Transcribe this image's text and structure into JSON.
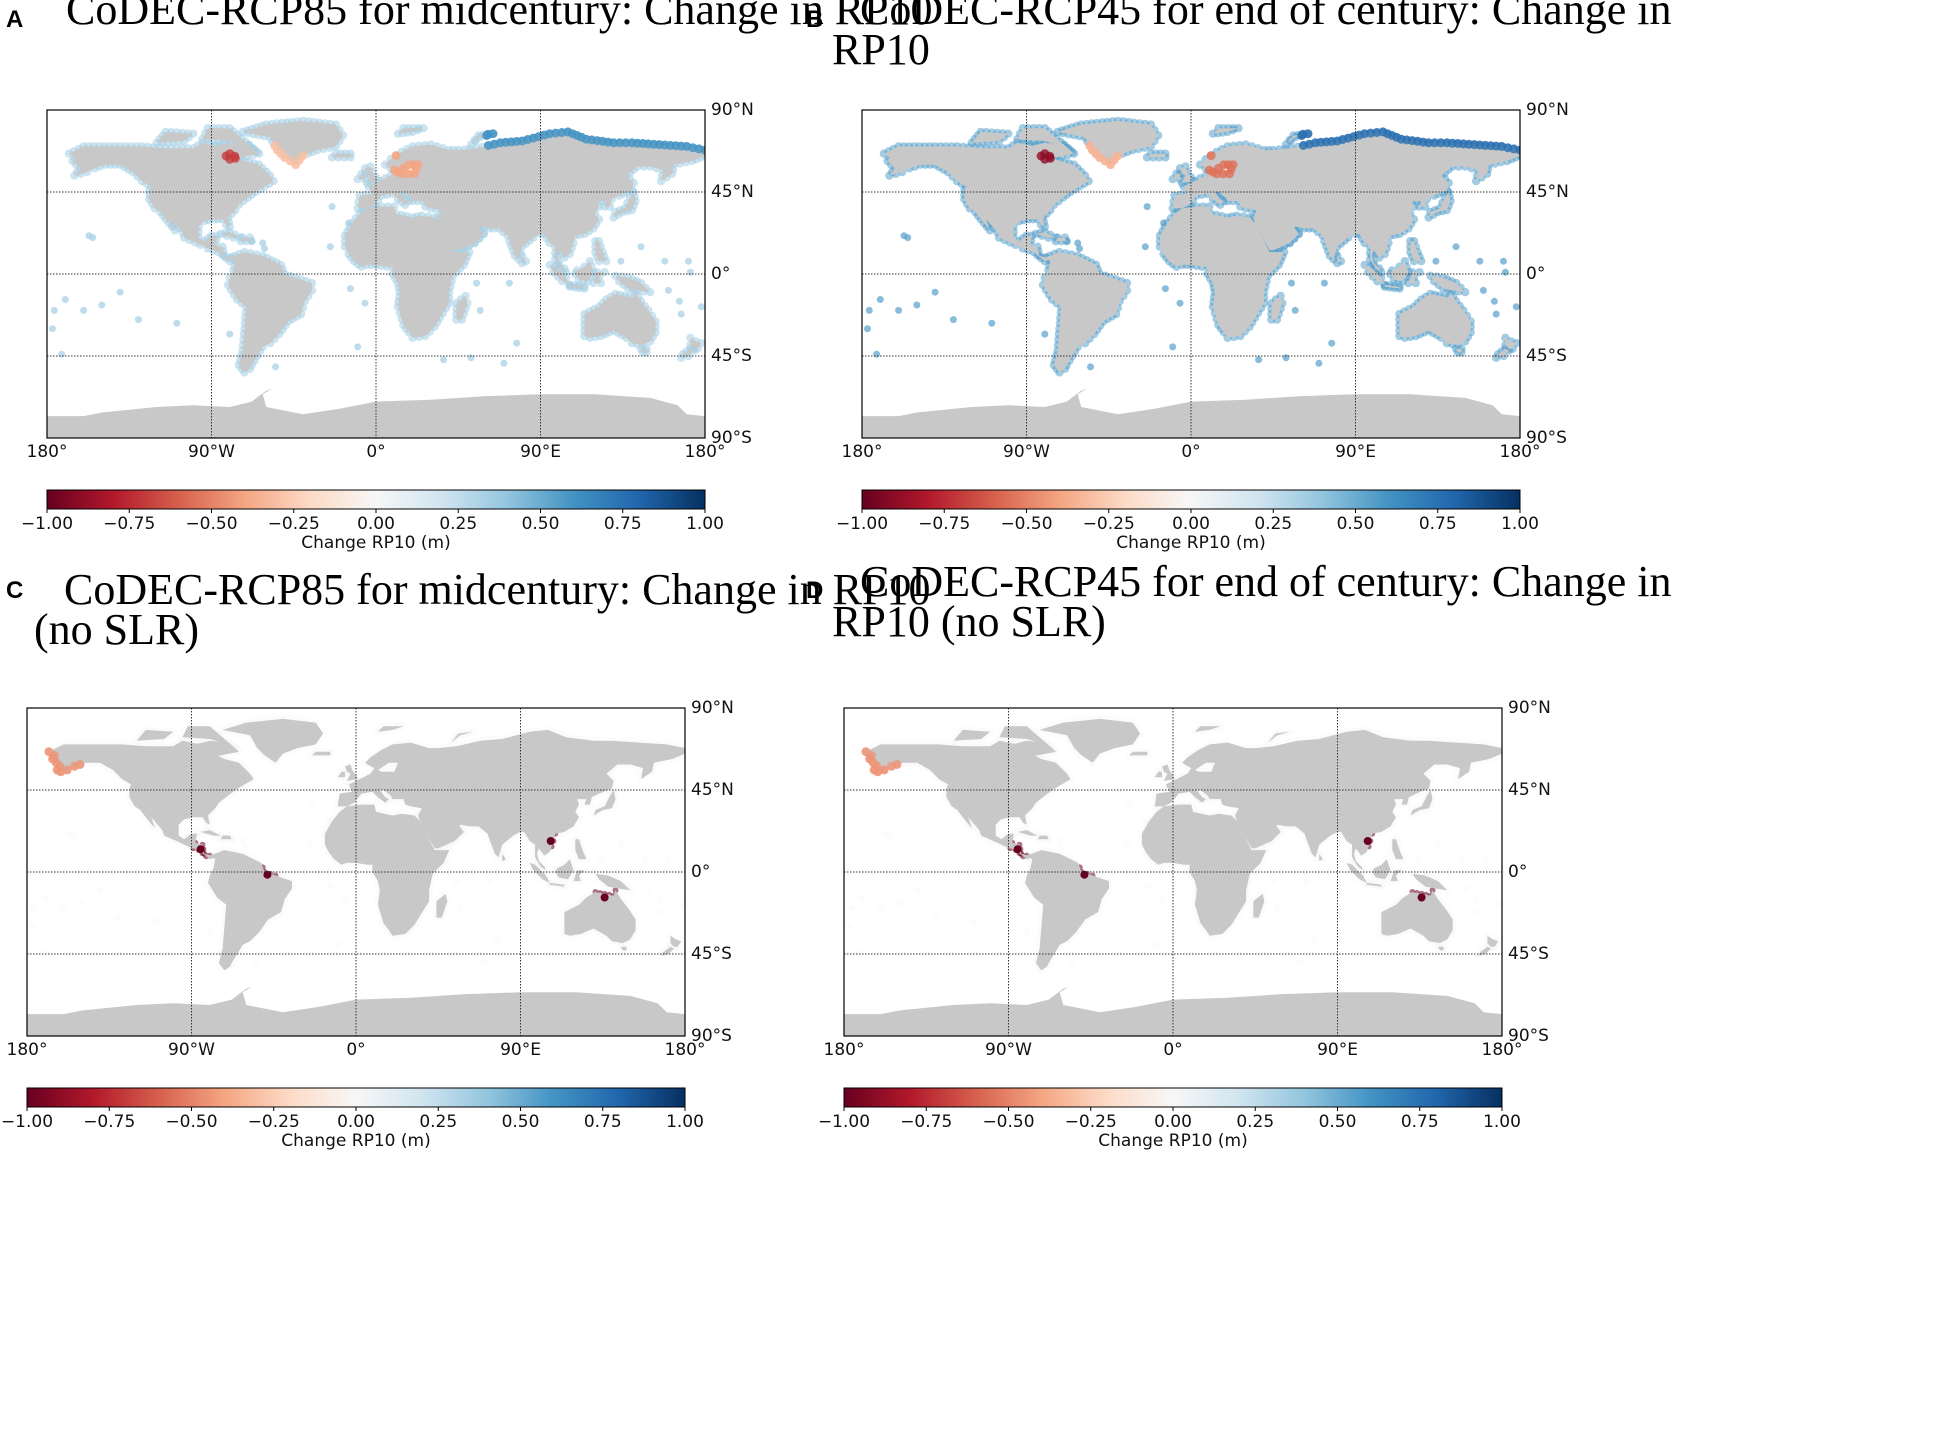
{
  "colors": {
    "land": "#c8c8c8",
    "ocean": "#ffffff",
    "cmap": [
      "#67001f",
      "#b2182b",
      "#d6604d",
      "#f4a582",
      "#fddbc7",
      "#f7f7f7",
      "#d1e5f0",
      "#92c5de",
      "#4393c3",
      "#2166ac",
      "#053061"
    ]
  },
  "axes": {
    "lon_ticks": [
      "180°",
      "90°W",
      "0°",
      "90°E",
      "180°"
    ],
    "lat_ticks": [
      "90°N",
      "45°N",
      "0°",
      "45°S",
      "90°S"
    ]
  },
  "colorbar": {
    "tick_labels": [
      "−1.00",
      "−0.75",
      "−0.50",
      "−0.25",
      "0.00",
      "0.25",
      "0.50",
      "0.75",
      "1.00"
    ],
    "label": "Change RP10 (m)",
    "range": [
      -1.0,
      1.0
    ]
  },
  "panels": [
    {
      "letter": "A",
      "title_lines": [
        "CoDEC-RCP85 for midcentury: Change in RP10"
      ],
      "scenario": "rcp85_mid_slr",
      "regions": [
        {
          "name": "global coasts",
          "value": 0.35
        },
        {
          "name": "hudson bay",
          "value": -0.7
        },
        {
          "name": "baltic sea",
          "value": -0.4
        },
        {
          "name": "greenland west",
          "value": -0.3
        },
        {
          "name": "arctic siberia",
          "value": 0.6
        }
      ]
    },
    {
      "letter": "B",
      "title_lines": [
        "CoDEC-RCP45 for end of century: Change in",
        "RP10"
      ],
      "scenario": "rcp45_end_slr",
      "regions": [
        {
          "name": "global coasts",
          "value": 0.55
        },
        {
          "name": "hudson bay",
          "value": -0.9
        },
        {
          "name": "baltic sea",
          "value": -0.55
        },
        {
          "name": "greenland west",
          "value": -0.35
        },
        {
          "name": "arctic siberia",
          "value": 0.75
        }
      ]
    },
    {
      "letter": "C",
      "title_lines": [
        "CoDEC-RCP85 for midcentury: Change in RP10",
        "(no SLR)"
      ],
      "scenario": "rcp85_mid_noslr",
      "regions": [
        {
          "name": "global coasts",
          "value": 0.02
        },
        {
          "name": "gulf of honduras",
          "value": -1.0
        },
        {
          "name": "amazon mouth",
          "value": -1.0
        },
        {
          "name": "gulf of tonkin",
          "value": -1.0
        },
        {
          "name": "gulf of carpentaria",
          "value": -1.0
        },
        {
          "name": "alaska",
          "value": -0.45
        }
      ]
    },
    {
      "letter": "D",
      "title_lines": [
        "CoDEC-RCP45 for end of century: Change in",
        "RP10 (no SLR)"
      ],
      "scenario": "rcp45_end_noslr",
      "regions": [
        {
          "name": "global coasts",
          "value": 0.02
        },
        {
          "name": "gulf of honduras",
          "value": -1.0
        },
        {
          "name": "amazon mouth",
          "value": -1.0
        },
        {
          "name": "gulf of tonkin",
          "value": -1.0
        },
        {
          "name": "gulf of carpentaria",
          "value": -1.0
        },
        {
          "name": "alaska",
          "value": -0.45
        }
      ]
    }
  ]
}
